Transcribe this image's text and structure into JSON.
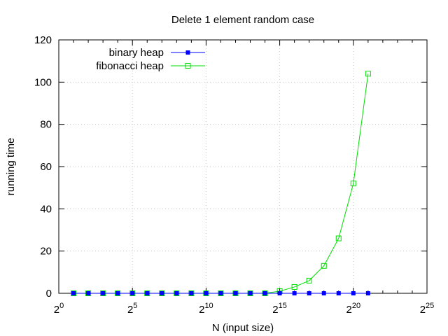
{
  "chart_data": {
    "type": "line",
    "title": "Delete 1 element random case",
    "xlabel": "N (input size)",
    "ylabel": "running time",
    "x_scale": "log2",
    "xlim_exponent": [
      0,
      25
    ],
    "ylim": [
      0,
      120
    ],
    "x_ticks": [
      {
        "base": "2",
        "exp": "0"
      },
      {
        "base": "2",
        "exp": "5"
      },
      {
        "base": "2",
        "exp": "10"
      },
      {
        "base": "2",
        "exp": "15"
      },
      {
        "base": "2",
        "exp": "20"
      },
      {
        "base": "2",
        "exp": "25"
      }
    ],
    "y_ticks": [
      "0",
      "20",
      "40",
      "60",
      "80",
      "100",
      "120"
    ],
    "grid": true,
    "legend_position": "top-left",
    "series": [
      {
        "name": "binary heap",
        "color": "#0000ff",
        "marker": "filled-square",
        "x_exponents": [
          1,
          2,
          3,
          4,
          5,
          6,
          7,
          8,
          9,
          10,
          11,
          12,
          13,
          14,
          15,
          16,
          17,
          18,
          19,
          20,
          21
        ],
        "values": [
          0,
          0,
          0,
          0,
          0,
          0,
          0,
          0,
          0,
          0,
          0,
          0,
          0,
          0,
          0,
          0,
          0,
          0,
          0,
          0,
          0
        ]
      },
      {
        "name": "fibonacci heap",
        "color": "#00dd00",
        "marker": "open-square",
        "x_exponents": [
          1,
          2,
          3,
          4,
          5,
          6,
          7,
          8,
          9,
          10,
          11,
          12,
          13,
          14,
          15,
          16,
          17,
          18,
          19,
          20,
          21
        ],
        "values": [
          0,
          0,
          0,
          0,
          0,
          0,
          0,
          0,
          0,
          0,
          0,
          0,
          0,
          0,
          1,
          3,
          6,
          13,
          26,
          52,
          104
        ]
      }
    ]
  }
}
